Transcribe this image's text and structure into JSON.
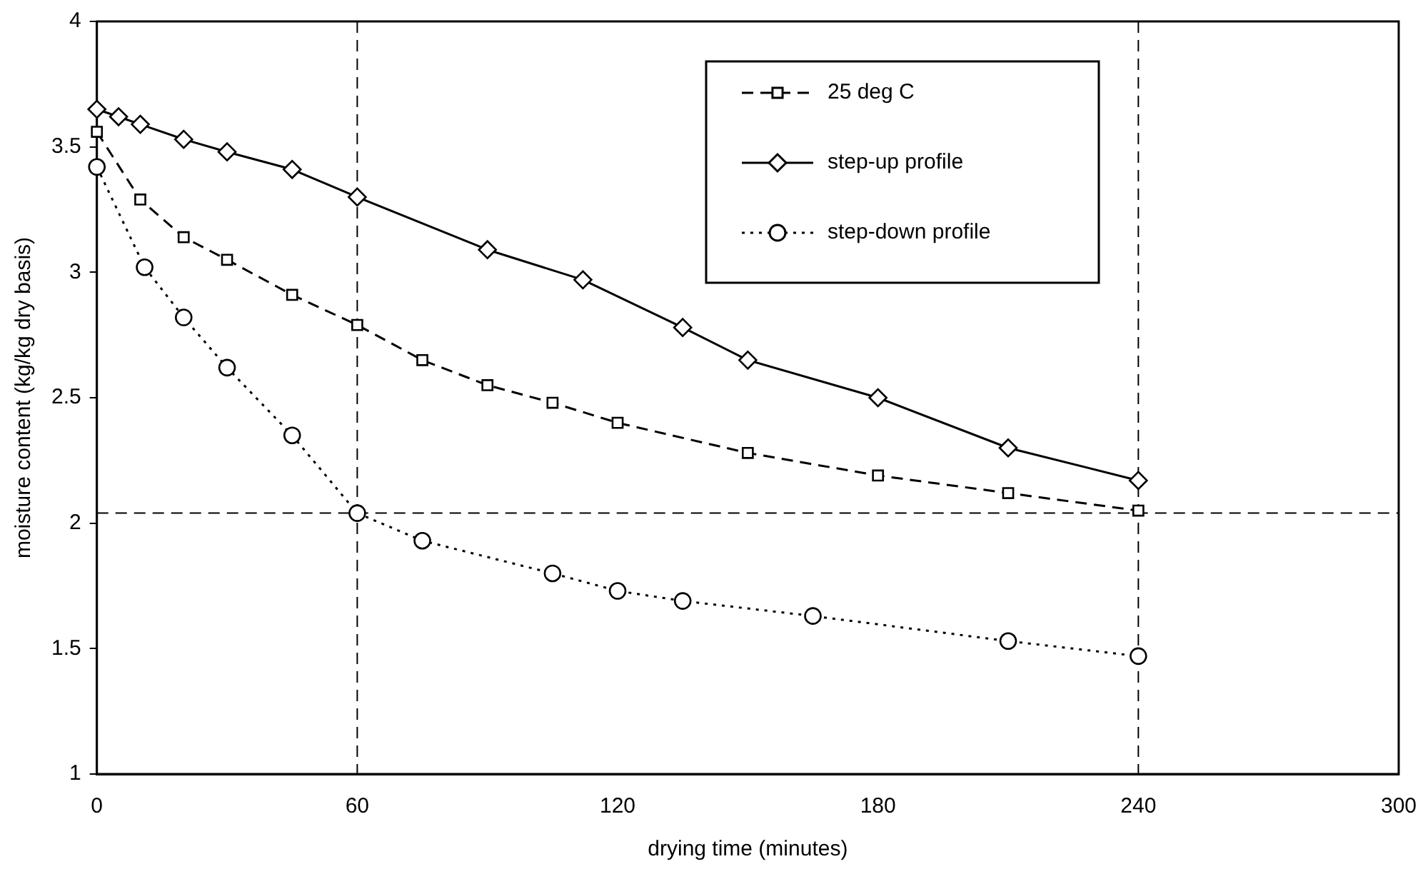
{
  "chart_data": {
    "type": "line",
    "xlabel": "drying time (minutes)",
    "ylabel": "moisture content (kg/kg dry basis)",
    "xlim": [
      0,
      300
    ],
    "xticks": [
      0,
      60,
      120,
      180,
      240,
      300
    ],
    "ylim": [
      1,
      4
    ],
    "yticks": [
      1,
      1.5,
      2,
      2.5,
      3,
      3.5,
      4
    ],
    "grid": false,
    "legend": "top right",
    "series": [
      {
        "name": "25 deg C",
        "color": "#000000",
        "marker": "square",
        "line_style": "dashed",
        "x": [
          0,
          10,
          20,
          30,
          45,
          60,
          75,
          90,
          105,
          120,
          150,
          180,
          210,
          240
        ],
        "values": [
          3.56,
          3.29,
          3.14,
          3.05,
          2.91,
          2.79,
          2.65,
          2.55,
          2.48,
          2.4,
          2.28,
          2.19,
          2.12,
          2.05
        ]
      },
      {
        "name": "step-up profile",
        "color": "#000000",
        "marker": "diamond",
        "line_style": "solid",
        "x": [
          0,
          5,
          10,
          20,
          30,
          45,
          60,
          90,
          112,
          135,
          150,
          180,
          210,
          240
        ],
        "values": [
          3.65,
          3.62,
          3.59,
          3.53,
          3.48,
          3.41,
          3.3,
          3.09,
          2.97,
          2.78,
          2.65,
          2.5,
          2.3,
          2.17
        ]
      },
      {
        "name": "step-down profile",
        "color": "#000000",
        "marker": "circle",
        "line_style": "dotted",
        "x": [
          0,
          11,
          20,
          30,
          45,
          60,
          75,
          105,
          120,
          135,
          165,
          210,
          240
        ],
        "values": [
          3.42,
          3.02,
          2.82,
          2.62,
          2.35,
          2.04,
          1.93,
          1.8,
          1.73,
          1.69,
          1.63,
          1.53,
          1.47
        ]
      }
    ],
    "ref_lines": [
      {
        "axis": "x",
        "value": 60,
        "line_style": "dashed"
      },
      {
        "axis": "x",
        "value": 240,
        "line_style": "dashed"
      },
      {
        "axis": "y",
        "value": 2.04,
        "line_style": "dashed"
      }
    ]
  }
}
